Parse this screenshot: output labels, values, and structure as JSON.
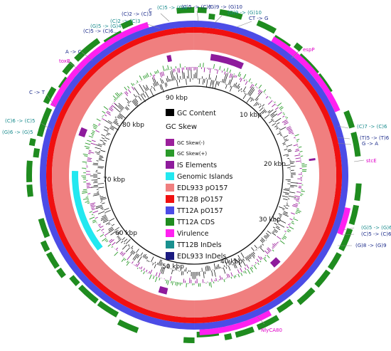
{
  "legend": {
    "gc_content": "GC Content",
    "gc_skew": "GC Skew",
    "gc_skew_minus": "GC Skew(-)",
    "gc_skew_plus": "GC Skew(+)",
    "is_elements": "IS Elements",
    "genomic_islands": "Genomic Islands",
    "edl933": "EDL933 pO157",
    "tt12b": "TT12B pO157",
    "tt12a": "TT12A pO157",
    "cds": "TT12A CDS",
    "virulence": "Virulence",
    "tt12b_indels": "TT12B InDels",
    "edl933_indels": "EDL933 InDels"
  },
  "colors": {
    "gc_content": "#000000",
    "gc_skew_minus": "#9b1f9b",
    "gc_skew_plus": "#2a9a2a",
    "is_elements": "#8e1b9c",
    "genomic_islands": "#22e8f0",
    "edl933": "#f07f7f",
    "tt12b": "#f01010",
    "tt12a": "#4c4ce6",
    "cds": "#1f8c1f",
    "virulence": "#ff20f0",
    "tt12b_indels": "#19908f",
    "edl933_indels": "#1a1a80"
  },
  "kbp_labels": {
    "k10": "10 kbp",
    "k20": "20 kbp",
    "k30": "30 kbp",
    "k40": "40 kbp",
    "k50": "50 kbp",
    "k60": "60 kbp",
    "k70": "70 kbp",
    "k80": "80 kbp",
    "k90": "90 kbp"
  },
  "annotations": {
    "c5_c6": "(C)5 -> (C)6",
    "g9_g10_top": "(G)9 -> (G)10",
    "g9_g10_b": "(G)9 -> (G)10",
    "ct_g": "CT -> G",
    "c2_c3_a": "(C)2 -> (C)3",
    "c2_c3_b": "(C)2 -> (C)3",
    "c5_c4": "(C)5 -> (C)4",
    "c_marker": "C",
    "g5_g4": "(G)5 -> (G)4",
    "c5_c6_b": "(C)5 -> (C)6...",
    "a_c": "A -> C",
    "espp": "espP",
    "toxb": "toxB",
    "c_t": "C -> T",
    "c6_c5": "(C)6 -> (C)5",
    "g6_g5": "(G)6 -> (G)5",
    "c7_c6": "(C)7 -> (C)6",
    "t5_t6": "(T)5 -> (T)6",
    "g_a": "G -> A",
    "stce": "stcE",
    "g5_g6": "(G)5 -> (G)6",
    "c5_c6_r": "(C)5 -> (C)6",
    "g8_g9": "(G)8 -> (G)9",
    "nlec": "NlyCA80"
  }
}
